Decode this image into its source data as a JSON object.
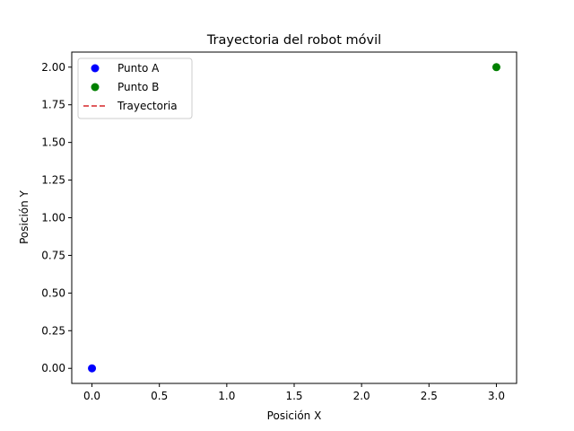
{
  "chart_data": {
    "type": "scatter",
    "title": "Trayectoria del robot móvil",
    "xlabel": "Posición X",
    "ylabel": "Posición Y",
    "xlim": [
      -0.15,
      3.15
    ],
    "ylim": [
      -0.1,
      2.1
    ],
    "xticks": [
      0.0,
      0.5,
      1.0,
      1.5,
      2.0,
      2.5,
      3.0
    ],
    "xtick_labels": [
      "0.0",
      "0.5",
      "1.0",
      "1.5",
      "2.0",
      "2.5",
      "3.0"
    ],
    "yticks": [
      0.0,
      0.25,
      0.5,
      0.75,
      1.0,
      1.25,
      1.5,
      1.75,
      2.0
    ],
    "ytick_labels": [
      "0.00",
      "0.25",
      "0.50",
      "0.75",
      "1.00",
      "1.25",
      "1.50",
      "1.75",
      "2.00"
    ],
    "grid": false,
    "legend_position": "top-left",
    "series": [
      {
        "name": "Punto A",
        "kind": "marker",
        "color": "#0000ff",
        "points": [
          [
            0,
            0
          ]
        ]
      },
      {
        "name": "Punto B",
        "kind": "marker",
        "color": "#008000",
        "points": [
          [
            3,
            2
          ]
        ]
      },
      {
        "name": "Trayectoria",
        "kind": "dashed-line",
        "color": "#d62728",
        "points": []
      }
    ]
  }
}
